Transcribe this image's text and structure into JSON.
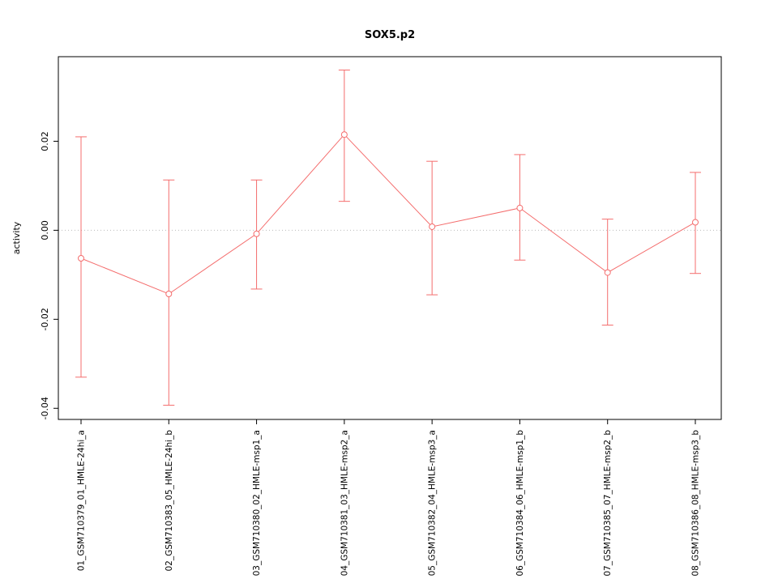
{
  "chart_data": {
    "type": "line",
    "title": "SOX5.p2",
    "xlabel": "",
    "ylabel": "activity",
    "categories": [
      "01_GSM710379_01_HMLE-24hi_a",
      "02_GSM710383_05_HMLE-24hi_b",
      "03_GSM710380_02_HMLE-msp1_a",
      "04_GSM710381_03_HMLE-msp2_a",
      "05_GSM710382_04_HMLE-msp3_a",
      "06_GSM710384_06_HMLE-msp1_b",
      "07_GSM710385_07_HMLE-msp2_b",
      "08_GSM710386_08_HMLE-msp3_b"
    ],
    "series": [
      {
        "name": "activity",
        "values": [
          -0.0063,
          -0.0143,
          -0.0008,
          0.0215,
          0.0008,
          0.005,
          -0.0095,
          0.0018
        ],
        "error_high": [
          0.021,
          0.0113,
          0.0113,
          0.036,
          0.0155,
          0.017,
          0.0025,
          0.013
        ],
        "error_low": [
          -0.033,
          -0.0393,
          -0.0132,
          0.0065,
          -0.0145,
          -0.0067,
          -0.0213,
          -0.0097
        ]
      }
    ],
    "ylim": [
      -0.0425,
      0.039
    ],
    "yticks": [
      -0.04,
      -0.02,
      0.0,
      0.02
    ],
    "ytick_labels": [
      "-0.04",
      "-0.02",
      "0.00",
      "0.02"
    ],
    "zero_line": true,
    "grid": "dotted horizontal line at y=0 only",
    "legend": "none",
    "point_style": "open-circle",
    "error_bars": true,
    "colors": {
      "series": "#f46d6d",
      "grid": "#bbbbbb",
      "axis": "#000000",
      "text": "#000000",
      "background": "#ffffff"
    }
  }
}
